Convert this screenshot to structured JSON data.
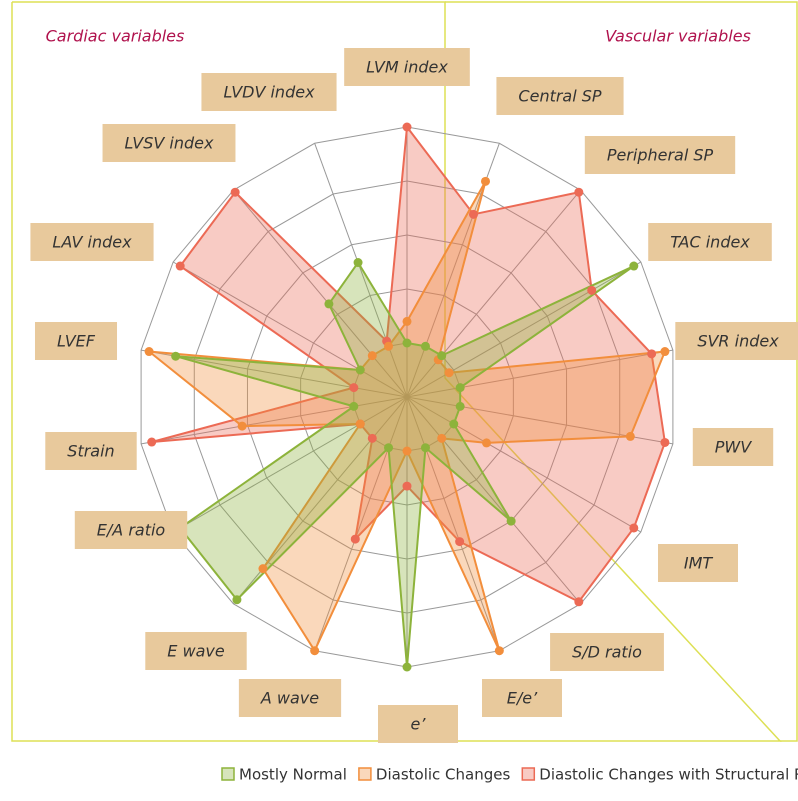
{
  "chart_data": {
    "type": "radar",
    "annotations": [
      "Cardiac variables",
      "Vascular variables"
    ],
    "categories": [
      "LVM index",
      "Central SP",
      "Peripheral SP",
      "TAC index",
      "SVR index",
      "PWV",
      "IMT",
      "S/D ratio",
      "E/e’",
      "e’",
      "A wave",
      "E wave",
      "E/A ratio",
      "Strain",
      "LVEF",
      "LAV index",
      "LVSV index",
      "LVDV index"
    ],
    "series": [
      {
        "name": "Mostly Normal",
        "color": "#8db33b",
        "values": [
          20,
          20,
          20,
          97,
          20,
          20,
          20,
          60,
          20,
          100,
          20,
          98,
          97,
          20,
          87,
          20,
          45,
          53
        ]
      },
      {
        "name": "Diastolic Changes",
        "color": "#f28e3c",
        "values": [
          28,
          85,
          18,
          18,
          97,
          84,
          34,
          20,
          100,
          20,
          100,
          83,
          20,
          62,
          97,
          20,
          20,
          20
        ]
      },
      {
        "name": "Diastolic Changes with Structural Remodeling",
        "color": "#ec6a55",
        "values": [
          100,
          72,
          99,
          79,
          92,
          97,
          97,
          99,
          57,
          33,
          56,
          20,
          20,
          96,
          20,
          97,
          99,
          22
        ]
      }
    ],
    "rlim": [
      0,
      100
    ],
    "rticks": [
      20,
      40,
      60,
      80,
      100
    ],
    "grid": true
  }
}
